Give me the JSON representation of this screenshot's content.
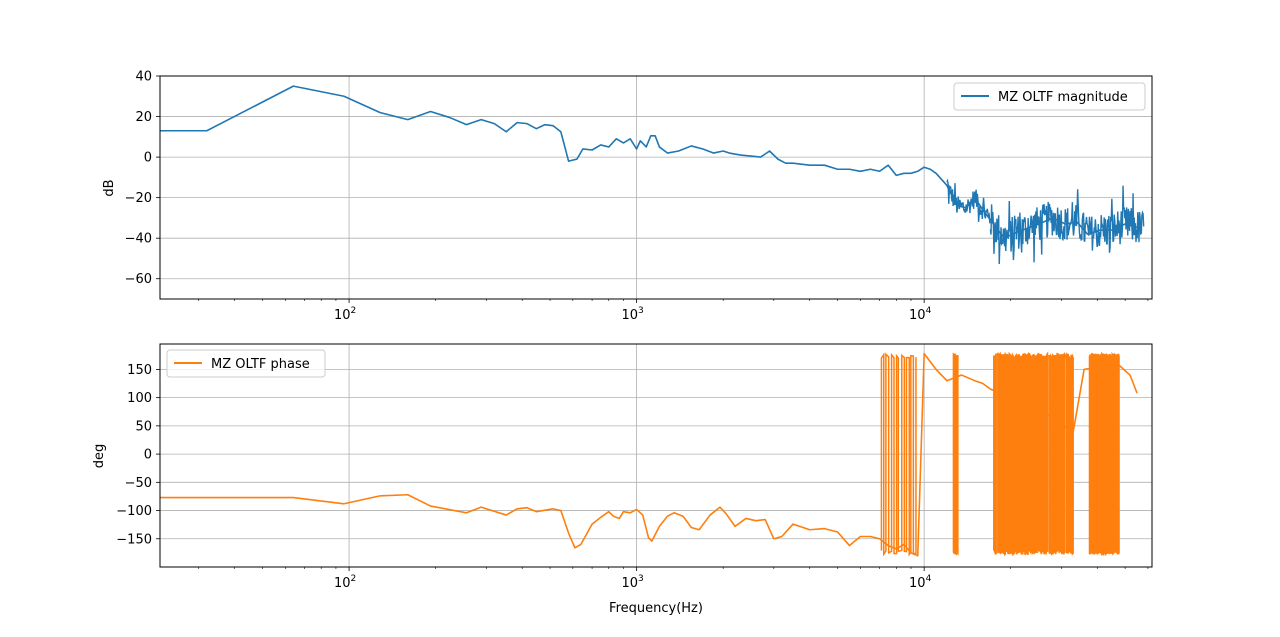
{
  "chart_data": [
    {
      "type": "line",
      "xscale": "log",
      "xlim": [
        22,
        62000
      ],
      "ylim": [
        -70,
        40
      ],
      "xlabel": "",
      "ylabel": "dB",
      "grid": true,
      "legend_position": "top-right",
      "xticks": [
        {
          "value": 100,
          "base": "10",
          "exp": "2"
        },
        {
          "value": 1000,
          "base": "10",
          "exp": "3"
        },
        {
          "value": 10000,
          "base": "10",
          "exp": "4"
        }
      ],
      "yticks": [
        {
          "value": 40,
          "label": "40"
        },
        {
          "value": 20,
          "label": "20"
        },
        {
          "value": 0,
          "label": "0"
        },
        {
          "value": -20,
          "label": "−20"
        },
        {
          "value": -40,
          "label": "−40"
        },
        {
          "value": -60,
          "label": "−60"
        }
      ],
      "series": [
        {
          "name": "MZ OLTF magnitude",
          "color": "#1f77b4",
          "noisy": [
            {
              "x0": 12000,
              "x1": 17000,
              "amp": 5,
              "n": 70
            },
            {
              "x0": 17000,
              "x1": 58000,
              "amp": 9,
              "n": 260
            }
          ],
          "points": [
            [
              22,
              13
            ],
            [
              32,
              13
            ],
            [
              64,
              35
            ],
            [
              96,
              30
            ],
            [
              128,
              22
            ],
            [
              160,
              18.5
            ],
            [
              192,
              22.5
            ],
            [
              224,
              19.5
            ],
            [
              256,
              16
            ],
            [
              288,
              18.5
            ],
            [
              320,
              16.5
            ],
            [
              352,
              12.5
            ],
            [
              384,
              17
            ],
            [
              416,
              16.5
            ],
            [
              448,
              14
            ],
            [
              480,
              16
            ],
            [
              512,
              15.5
            ],
            [
              545,
              12.5
            ],
            [
              580,
              -2
            ],
            [
              620,
              -1
            ],
            [
              650,
              4
            ],
            [
              700,
              3.5
            ],
            [
              750,
              6
            ],
            [
              800,
              5
            ],
            [
              850,
              9
            ],
            [
              900,
              7
            ],
            [
              950,
              9
            ],
            [
              1000,
              4
            ],
            [
              1030,
              8
            ],
            [
              1080,
              5
            ],
            [
              1120,
              10.5
            ],
            [
              1160,
              10.5
            ],
            [
              1200,
              5
            ],
            [
              1280,
              2
            ],
            [
              1400,
              3
            ],
            [
              1550,
              5.5
            ],
            [
              1700,
              4
            ],
            [
              1850,
              2
            ],
            [
              2000,
              3
            ],
            [
              2100,
              2
            ],
            [
              2300,
              1
            ],
            [
              2500,
              0.5
            ],
            [
              2700,
              0
            ],
            [
              2900,
              3
            ],
            [
              3100,
              -1
            ],
            [
              3300,
              -3
            ],
            [
              3500,
              -3
            ],
            [
              4000,
              -4
            ],
            [
              4500,
              -4
            ],
            [
              5000,
              -6
            ],
            [
              5500,
              -6
            ],
            [
              6000,
              -7
            ],
            [
              6500,
              -6
            ],
            [
              7000,
              -7
            ],
            [
              7500,
              -4
            ],
            [
              8000,
              -9
            ],
            [
              8500,
              -8
            ],
            [
              9000,
              -8
            ],
            [
              9500,
              -7
            ],
            [
              10000,
              -5
            ],
            [
              10500,
              -6
            ],
            [
              11000,
              -8
            ],
            [
              12000,
              -14
            ],
            [
              13000,
              -24
            ],
            [
              14000,
              -25
            ],
            [
              15000,
              -20
            ],
            [
              16000,
              -26
            ],
            [
              17000,
              -31
            ],
            [
              19000,
              -40
            ],
            [
              21000,
              -37
            ],
            [
              23000,
              -35
            ],
            [
              26000,
              -32
            ],
            [
              28000,
              -30
            ],
            [
              31000,
              -33
            ],
            [
              34000,
              -32
            ],
            [
              37000,
              -38
            ],
            [
              41000,
              -36
            ],
            [
              45000,
              -36
            ],
            [
              50000,
              -33
            ],
            [
              56000,
              -35
            ]
          ]
        }
      ]
    },
    {
      "type": "line",
      "xscale": "log",
      "xlim": [
        22,
        62000
      ],
      "ylim": [
        -200,
        195
      ],
      "xlabel": "Frequency(Hz)",
      "ylabel": "deg",
      "grid": true,
      "legend_position": "top-left",
      "xticks": [
        {
          "value": 100,
          "base": "10",
          "exp": "2"
        },
        {
          "value": 1000,
          "base": "10",
          "exp": "3"
        },
        {
          "value": 10000,
          "base": "10",
          "exp": "4"
        }
      ],
      "yticks": [
        {
          "value": 150,
          "label": "150"
        },
        {
          "value": 100,
          "label": "100"
        },
        {
          "value": 50,
          "label": "50"
        },
        {
          "value": 0,
          "label": "0"
        },
        {
          "value": -50,
          "label": "−50"
        },
        {
          "value": -100,
          "label": "−100"
        },
        {
          "value": -150,
          "label": "−150"
        }
      ],
      "series": [
        {
          "name": "MZ OLTF phase",
          "color": "#ff7f0e",
          "wrap_bands": [
            {
              "x0": 7100,
              "x1": 9400,
              "n": 14
            },
            {
              "x0": 12600,
              "x1": 13100,
              "n": 6
            },
            {
              "x0": 17500,
              "x1": 33000,
              "n": 120
            },
            {
              "x0": 37500,
              "x1": 47500,
              "n": 110
            }
          ],
          "points": [
            [
              22,
              -77
            ],
            [
              32,
              -77
            ],
            [
              64,
              -77
            ],
            [
              96,
              -88
            ],
            [
              128,
              -74
            ],
            [
              160,
              -72
            ],
            [
              192,
              -92
            ],
            [
              256,
              -104
            ],
            [
              288,
              -94
            ],
            [
              352,
              -108
            ],
            [
              384,
              -97
            ],
            [
              416,
              -95
            ],
            [
              448,
              -102
            ],
            [
              512,
              -97
            ],
            [
              545,
              -100
            ],
            [
              580,
              -140
            ],
            [
              610,
              -166
            ],
            [
              640,
              -160
            ],
            [
              700,
              -124
            ],
            [
              750,
              -112
            ],
            [
              800,
              -102
            ],
            [
              830,
              -110
            ],
            [
              870,
              -114
            ],
            [
              900,
              -102
            ],
            [
              950,
              -104
            ],
            [
              1000,
              -98
            ],
            [
              1050,
              -108
            ],
            [
              1100,
              -148
            ],
            [
              1130,
              -154
            ],
            [
              1200,
              -128
            ],
            [
              1280,
              -110
            ],
            [
              1350,
              -104
            ],
            [
              1450,
              -110
            ],
            [
              1550,
              -130
            ],
            [
              1650,
              -134
            ],
            [
              1800,
              -108
            ],
            [
              1950,
              -94
            ],
            [
              2050,
              -106
            ],
            [
              2200,
              -128
            ],
            [
              2400,
              -114
            ],
            [
              2600,
              -118
            ],
            [
              2800,
              -116
            ],
            [
              3000,
              -150
            ],
            [
              3200,
              -146
            ],
            [
              3500,
              -124
            ],
            [
              4000,
              -134
            ],
            [
              4500,
              -132
            ],
            [
              5000,
              -138
            ],
            [
              5500,
              -162
            ],
            [
              6000,
              -146
            ],
            [
              6500,
              -146
            ],
            [
              7000,
              -150
            ],
            [
              7500,
              -162
            ],
            [
              8000,
              -168
            ],
            [
              8500,
              -160
            ],
            [
              9000,
              -175
            ],
            [
              9500,
              -180
            ],
            [
              10000,
              178
            ],
            [
              11000,
              150
            ],
            [
              12000,
              130
            ],
            [
              13500,
              140
            ],
            [
              15000,
              130
            ],
            [
              16000,
              125
            ],
            [
              17000,
              115
            ],
            [
              20000,
              100
            ],
            [
              25000,
              80
            ],
            [
              33000,
              40
            ],
            [
              36000,
              150
            ],
            [
              47000,
              160
            ],
            [
              52000,
              140
            ],
            [
              55000,
              108
            ]
          ]
        }
      ]
    }
  ]
}
